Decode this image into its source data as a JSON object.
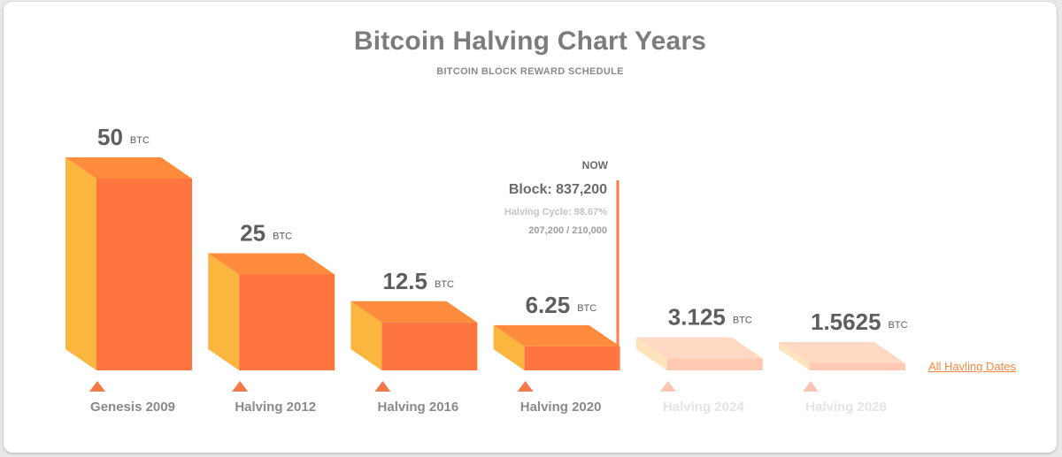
{
  "chart_data": {
    "type": "bar",
    "title": "Bitcoin Halving Chart Years",
    "subtitle": "BITCOIN BLOCK REWARD SCHEDULE",
    "unit": "BTC",
    "categories": [
      "Genesis 2009",
      "Halving 2012",
      "Halving 2016",
      "Halving 2020",
      "Halving 2024",
      "Halving 2028"
    ],
    "values": [
      50,
      25,
      12.5,
      6.25,
      3.125,
      1.5625
    ],
    "value_labels": [
      "50",
      "25",
      "12.5",
      "6.25",
      "3.125",
      "1.5625"
    ],
    "current_index": 3,
    "future_from_index": 4,
    "current_progress": 0.9867,
    "now_marker": {
      "label": "NOW",
      "block_text": "Block: 837,200",
      "cycle_text": "Halving Cycle: 98.67%",
      "progress_text": "207,200 / 210,000"
    }
  },
  "link": {
    "label": "All Havling Dates"
  },
  "colors": {
    "front": "#ff7540",
    "top": "#ff8c3d",
    "side": "#fbb63f",
    "future_front": "#ffc9b3",
    "future_top": "#ffd9c4",
    "future_side": "#ffe3bd",
    "marker": "#f4794a",
    "future_marker": "#f9c6b5"
  }
}
